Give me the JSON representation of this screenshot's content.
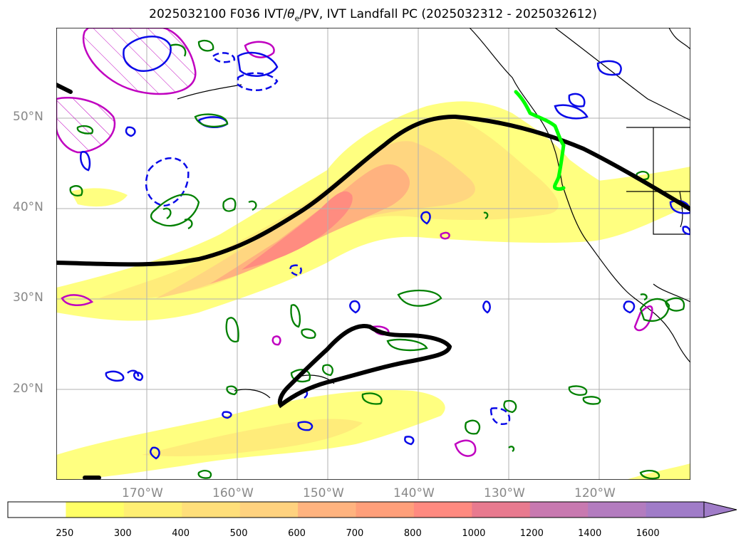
{
  "title": {
    "prefix": "2025032100 F036 IVT/",
    "theta": "θ",
    "theta_sub": "e",
    "suffix": "/PV, IVT Landfall PC (2025032312 - 2025032612)"
  },
  "map": {
    "projection": "plate-carree",
    "lon_range": [
      -180,
      -110
    ],
    "lat_range": [
      10,
      60
    ],
    "lat_labels": [
      "50°N",
      "40°N",
      "30°N",
      "20°N"
    ],
    "lon_labels": [
      "170°W",
      "160°W",
      "150°W",
      "140°W",
      "130°W",
      "120°W"
    ],
    "grid": true
  },
  "colorbar": {
    "levels": [
      "250",
      "300",
      "400",
      "500",
      "600",
      "700",
      "800",
      "1000",
      "1200",
      "1400",
      "1600"
    ],
    "colors": [
      "#ffffff",
      "#ffff66",
      "#ffef73",
      "#ffdf7a",
      "#ffd27f",
      "#ffb37f",
      "#ff9f7a",
      "#ff8a80",
      "#e87a8f",
      "#c879b0",
      "#b37cbf",
      "#a07cc8"
    ],
    "extend": "max"
  },
  "contours": {
    "ivt_shading_color": "#ffd27f",
    "pv_positive_color": "#0a0ae8",
    "pv_negative_color": "#008000",
    "theta_e_color": "#c000c0",
    "landfall_path_color": "#00ff00",
    "jet_axis_color": "#000000"
  }
}
